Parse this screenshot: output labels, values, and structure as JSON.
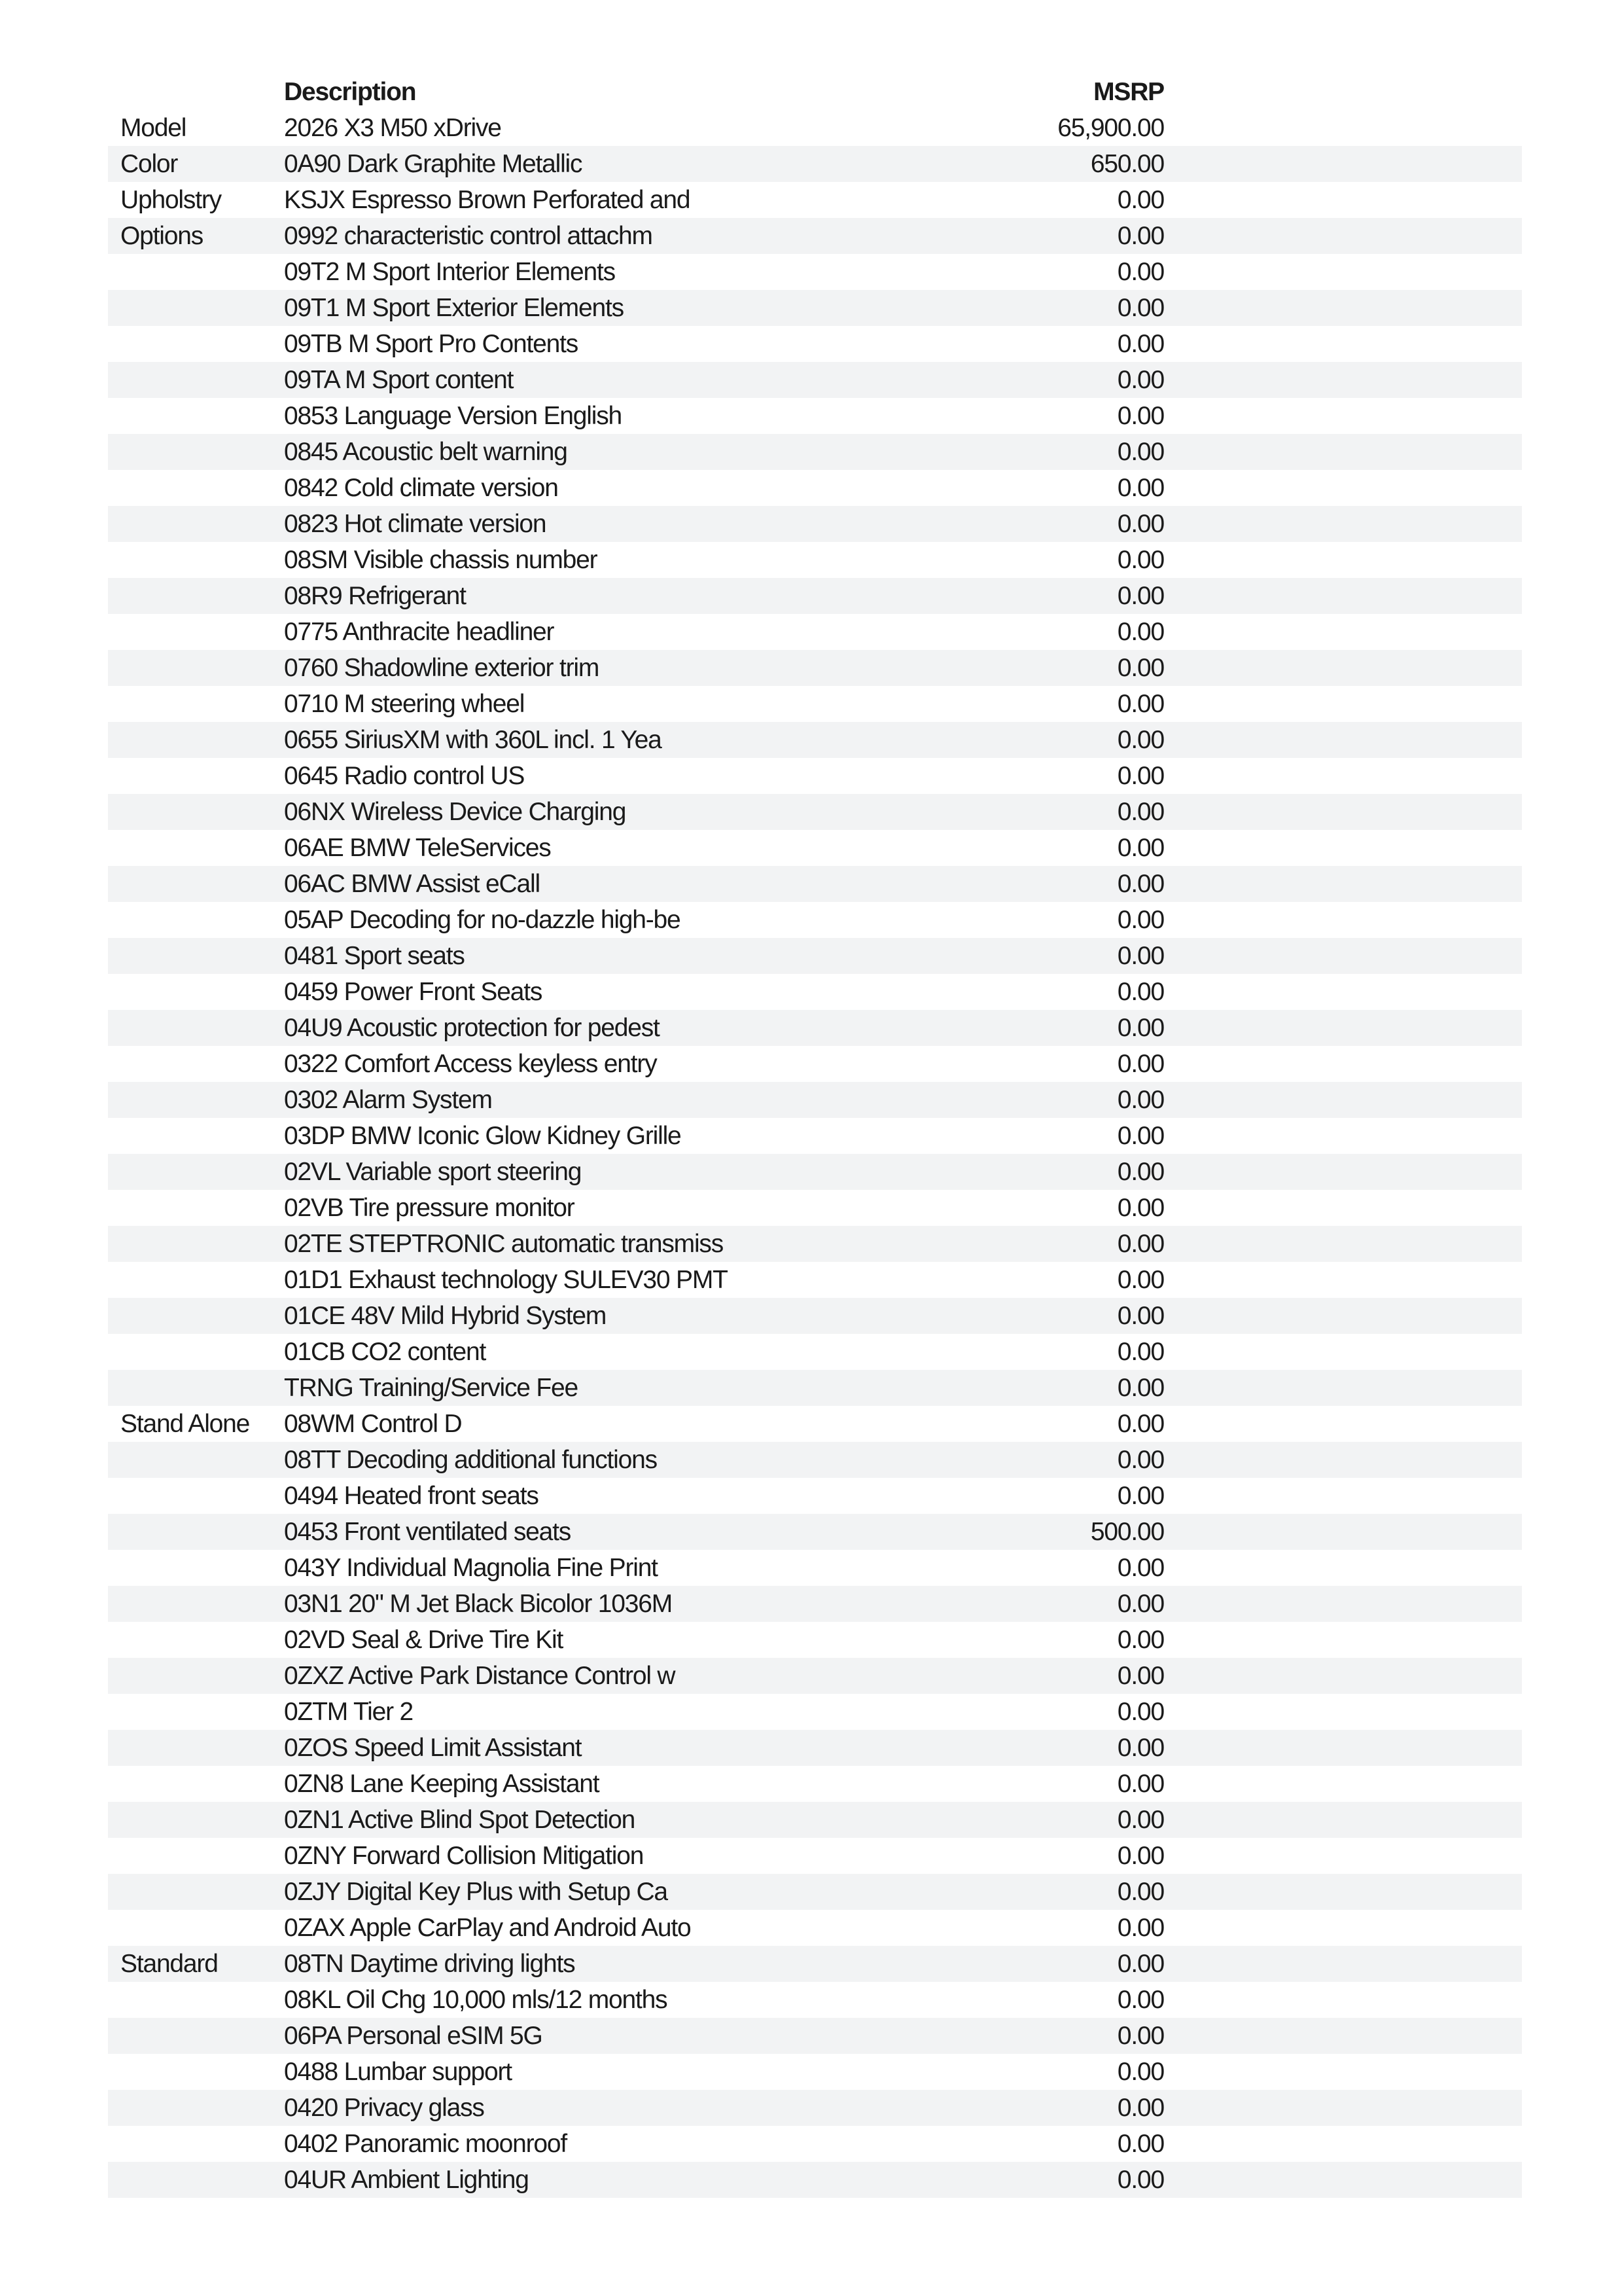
{
  "header": {
    "description": "Description",
    "msrp": "MSRP"
  },
  "colors": {
    "stripe": "#f2f3f4",
    "text": "#1a1a1a"
  },
  "rows": [
    {
      "category": "Model",
      "description": "2026 X3 M50 xDrive",
      "msrp": "65,900.00"
    },
    {
      "category": "Color",
      "description": "0A90 Dark Graphite Metallic",
      "msrp": "650.00"
    },
    {
      "category": "Upholstry",
      "description": "KSJX Espresso Brown Perforated and",
      "msrp": "0.00"
    },
    {
      "category": "Options",
      "description": "0992 characteristic control attachm",
      "msrp": "0.00"
    },
    {
      "category": "",
      "description": "09T2 M Sport Interior Elements",
      "msrp": "0.00"
    },
    {
      "category": "",
      "description": "09T1 M Sport Exterior Elements",
      "msrp": "0.00"
    },
    {
      "category": "",
      "description": "09TB M Sport Pro Contents",
      "msrp": "0.00"
    },
    {
      "category": "",
      "description": "09TA M Sport content",
      "msrp": "0.00"
    },
    {
      "category": "",
      "description": "0853 Language Version English",
      "msrp": "0.00"
    },
    {
      "category": "",
      "description": "0845 Acoustic belt warning",
      "msrp": "0.00"
    },
    {
      "category": "",
      "description": "0842 Cold climate version",
      "msrp": "0.00"
    },
    {
      "category": "",
      "description": "0823 Hot climate version",
      "msrp": "0.00"
    },
    {
      "category": "",
      "description": "08SM Visible chassis number",
      "msrp": "0.00"
    },
    {
      "category": "",
      "description": "08R9 Refrigerant",
      "msrp": "0.00"
    },
    {
      "category": "",
      "description": "0775 Anthracite headliner",
      "msrp": "0.00"
    },
    {
      "category": "",
      "description": "0760 Shadowline exterior trim",
      "msrp": "0.00"
    },
    {
      "category": "",
      "description": "0710 M steering wheel",
      "msrp": "0.00"
    },
    {
      "category": "",
      "description": "0655 SiriusXM with 360L incl. 1 Yea",
      "msrp": "0.00"
    },
    {
      "category": "",
      "description": "0645 Radio control US",
      "msrp": "0.00"
    },
    {
      "category": "",
      "description": "06NX Wireless Device Charging",
      "msrp": "0.00"
    },
    {
      "category": "",
      "description": "06AE BMW TeleServices",
      "msrp": "0.00"
    },
    {
      "category": "",
      "description": "06AC BMW Assist eCall",
      "msrp": "0.00"
    },
    {
      "category": "",
      "description": "05AP Decoding for no-dazzle high-be",
      "msrp": "0.00"
    },
    {
      "category": "",
      "description": "0481 Sport seats",
      "msrp": "0.00"
    },
    {
      "category": "",
      "description": "0459 Power Front Seats",
      "msrp": "0.00"
    },
    {
      "category": "",
      "description": "04U9 Acoustic protection for pedest",
      "msrp": "0.00"
    },
    {
      "category": "",
      "description": "0322 Comfort Access keyless entry",
      "msrp": "0.00"
    },
    {
      "category": "",
      "description": "0302 Alarm System",
      "msrp": "0.00"
    },
    {
      "category": "",
      "description": "03DP BMW Iconic Glow Kidney Grille",
      "msrp": "0.00"
    },
    {
      "category": "",
      "description": "02VL Variable sport steering",
      "msrp": "0.00"
    },
    {
      "category": "",
      "description": "02VB Tire pressure monitor",
      "msrp": "0.00"
    },
    {
      "category": "",
      "description": "02TE STEPTRONIC automatic transmiss",
      "msrp": "0.00"
    },
    {
      "category": "",
      "description": "01D1 Exhaust technology SULEV30 PMT",
      "msrp": "0.00"
    },
    {
      "category": "",
      "description": "01CE 48V Mild Hybrid System",
      "msrp": "0.00"
    },
    {
      "category": "",
      "description": "01CB CO2 content",
      "msrp": "0.00"
    },
    {
      "category": "",
      "description": "TRNG Training/Service Fee",
      "msrp": "0.00"
    },
    {
      "category": "Stand Alone",
      "description": "08WM Control D",
      "msrp": "0.00"
    },
    {
      "category": "",
      "description": "08TT Decoding additional functions",
      "msrp": "0.00"
    },
    {
      "category": "",
      "description": "0494 Heated front seats",
      "msrp": "0.00"
    },
    {
      "category": "",
      "description": "0453 Front ventilated seats",
      "msrp": "500.00"
    },
    {
      "category": "",
      "description": "043Y Individual Magnolia Fine Print",
      "msrp": "0.00"
    },
    {
      "category": "",
      "description": "03N1 20\" M Jet Black Bicolor 1036M",
      "msrp": "0.00"
    },
    {
      "category": "",
      "description": "02VD Seal & Drive Tire Kit",
      "msrp": "0.00"
    },
    {
      "category": "",
      "description": "0ZXZ Active Park Distance Control w",
      "msrp": "0.00"
    },
    {
      "category": "",
      "description": "0ZTM Tier 2",
      "msrp": "0.00"
    },
    {
      "category": "",
      "description": "0ZOS Speed Limit Assistant",
      "msrp": "0.00"
    },
    {
      "category": "",
      "description": "0ZN8 Lane Keeping Assistant",
      "msrp": "0.00"
    },
    {
      "category": "",
      "description": "0ZN1 Active Blind Spot Detection",
      "msrp": "0.00"
    },
    {
      "category": "",
      "description": "0ZNY Forward Collision Mitigation",
      "msrp": "0.00"
    },
    {
      "category": "",
      "description": "0ZJY Digital Key Plus with Setup Ca",
      "msrp": "0.00"
    },
    {
      "category": "",
      "description": "0ZAX Apple CarPlay and Android Auto",
      "msrp": "0.00"
    },
    {
      "category": "Standard",
      "description": "08TN Daytime driving lights",
      "msrp": "0.00"
    },
    {
      "category": "",
      "description": "08KL Oil Chg 10,000 mls/12 months",
      "msrp": "0.00"
    },
    {
      "category": "",
      "description": "06PA Personal eSIM 5G",
      "msrp": "0.00"
    },
    {
      "category": "",
      "description": "0488 Lumbar support",
      "msrp": "0.00"
    },
    {
      "category": "",
      "description": "0420 Privacy glass",
      "msrp": "0.00"
    },
    {
      "category": "",
      "description": "0402 Panoramic moonroof",
      "msrp": "0.00"
    },
    {
      "category": "",
      "description": "04UR Ambient Lighting",
      "msrp": "0.00"
    }
  ]
}
